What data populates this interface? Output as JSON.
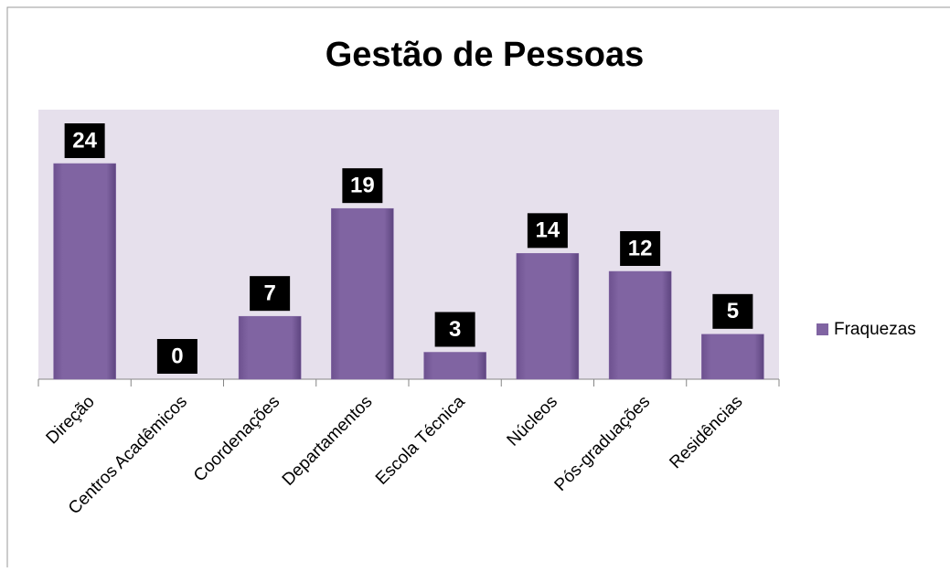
{
  "chart_data": {
    "type": "bar",
    "title": "Gestão de Pessoas",
    "categories": [
      "Direção",
      "Centros Acadêmicos",
      "Coordenações",
      "Departamentos",
      "Escola Técnica",
      "Núcleos",
      "Pós-graduações",
      "Residências"
    ],
    "series": [
      {
        "name": "Fraquezas",
        "color": "#8064a2",
        "values": [
          24,
          0,
          7,
          19,
          3,
          14,
          12,
          5
        ]
      }
    ],
    "ylim": [
      0,
      30
    ]
  }
}
